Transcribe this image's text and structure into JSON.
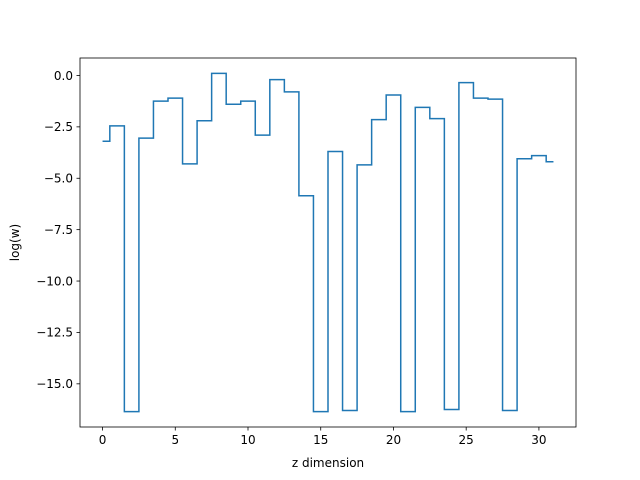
{
  "chart_data": {
    "type": "line",
    "drawstyle": "steps-mid",
    "xlabel": "z dimension",
    "ylabel": "log(w)",
    "xlim": [
      -1.55,
      32.55
    ],
    "ylim": [
      -17.1,
      0.85
    ],
    "xticks": [
      0,
      5,
      10,
      15,
      20,
      25,
      30
    ],
    "xtick_labels": [
      "0",
      "5",
      "10",
      "15",
      "20",
      "25",
      "30"
    ],
    "yticks": [
      0.0,
      -2.5,
      -5.0,
      -7.5,
      -10.0,
      -12.5,
      -15.0
    ],
    "ytick_labels": [
      "0.0",
      "−2.5",
      "−5.0",
      "−7.5",
      "−10.0",
      "−12.5",
      "−15.0"
    ],
    "grid": false,
    "line_color": "#1f77b4",
    "series": [
      {
        "x": [
          0,
          1,
          2,
          3,
          4,
          5,
          6,
          7,
          8,
          9,
          10,
          11,
          12,
          13,
          14,
          15,
          16,
          17,
          18,
          19,
          20,
          21,
          22,
          23,
          24,
          25,
          26,
          27,
          28,
          29,
          30,
          31
        ],
        "values": [
          -3.2,
          -2.45,
          -16.35,
          -3.05,
          -1.25,
          -1.1,
          -4.3,
          -2.2,
          0.1,
          -1.4,
          -1.25,
          -2.9,
          -0.2,
          -0.8,
          -5.85,
          -16.35,
          -3.7,
          -16.3,
          -4.35,
          -2.15,
          -0.95,
          -16.35,
          -1.55,
          -2.1,
          -16.25,
          -0.35,
          -1.1,
          -1.15,
          -16.3,
          -4.05,
          -3.9,
          -4.2
        ]
      }
    ]
  }
}
